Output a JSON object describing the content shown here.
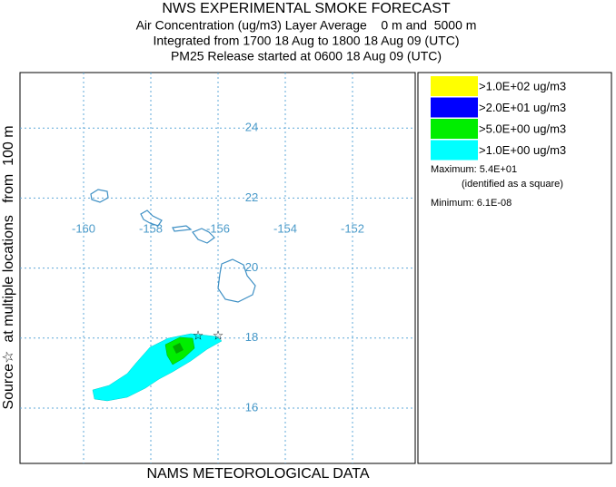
{
  "header": {
    "title": "NWS EXPERIMENTAL SMOKE FORECAST",
    "lines": [
      "Air Concentration (ug/m3) Layer Average    0 m and  5000 m",
      "Integrated from 1700 18 Aug to 1800 18 Aug 09 (UTC)",
      "PM25 Release started at 0600 18 Aug 09 (UTC)"
    ]
  },
  "side_label": "Source☆  at multiple locations   from  100 m",
  "map": {
    "lon_ticks": [
      -160,
      -158,
      -156,
      -154,
      -152
    ],
    "lat_ticks": [
      16,
      18,
      20,
      22,
      24
    ]
  },
  "legend": {
    "entries": [
      {
        "label": ">1.0E+02 ug/m3",
        "color": "#ffff00"
      },
      {
        "label": ">2.0E+01 ug/m3",
        "color": "#0000ff"
      },
      {
        "label": ">5.0E+00 ug/m3",
        "color": "#00ee00"
      },
      {
        "label": ">1.0E+00 ug/m3",
        "color": "#00ffff"
      }
    ],
    "maximum": "Maximum: 5.4E+01",
    "maximum_note": "(identified as a square)",
    "minimum": "Minimum: 6.1E-08"
  },
  "footer": "NAMS METEOROLOGICAL DATA"
}
